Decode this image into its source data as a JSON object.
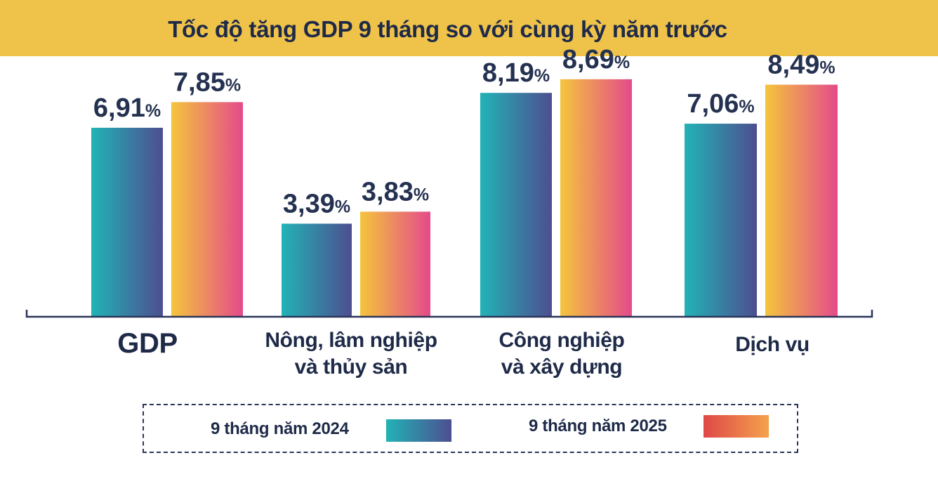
{
  "title": "Tốc độ tăng GDP 9 tháng so với cùng kỳ năm trước",
  "colors": {
    "title_bg": "#efc24a",
    "text": "#1e2a48",
    "series_2024": [
      "#22b3b6",
      "#4d4e90"
    ],
    "series_2025": [
      "#f4c53c",
      "#e44a8b"
    ],
    "legend_2025_swatch": [
      "#e04848",
      "#f3a24c"
    ]
  },
  "chart_data": {
    "type": "bar",
    "title": "Tốc độ tăng GDP 9 tháng so với cùng kỳ năm trước",
    "categories": [
      "GDP",
      "Nông, lâm nghiệp và thủy sản",
      "Công nghiệp và xây dựng",
      "Dịch vụ"
    ],
    "category_lines": [
      [
        "GDP"
      ],
      [
        "Nông, lâm nghiệp",
        "và thủy sản"
      ],
      [
        "Công nghiệp",
        "và xây dựng"
      ],
      [
        "Dịch vụ"
      ]
    ],
    "series": [
      {
        "name": "9 tháng năm 2024",
        "values": [
          6.91,
          3.39,
          8.19,
          7.06
        ],
        "labels": [
          "6,91",
          "3,39",
          "8,19",
          "7,06"
        ]
      },
      {
        "name": "9 tháng năm 2025",
        "values": [
          7.85,
          3.83,
          8.69,
          8.49
        ],
        "labels": [
          "7,85",
          "3,83",
          "8,69",
          "8,49"
        ]
      }
    ],
    "unit": "%",
    "xlabel": "",
    "ylabel": "",
    "ylim": [
      0,
      9
    ],
    "grid": false,
    "legend": "bottom"
  },
  "legend": {
    "label_2024": "9 tháng năm 2024",
    "label_2025": "9 tháng năm 2025"
  }
}
